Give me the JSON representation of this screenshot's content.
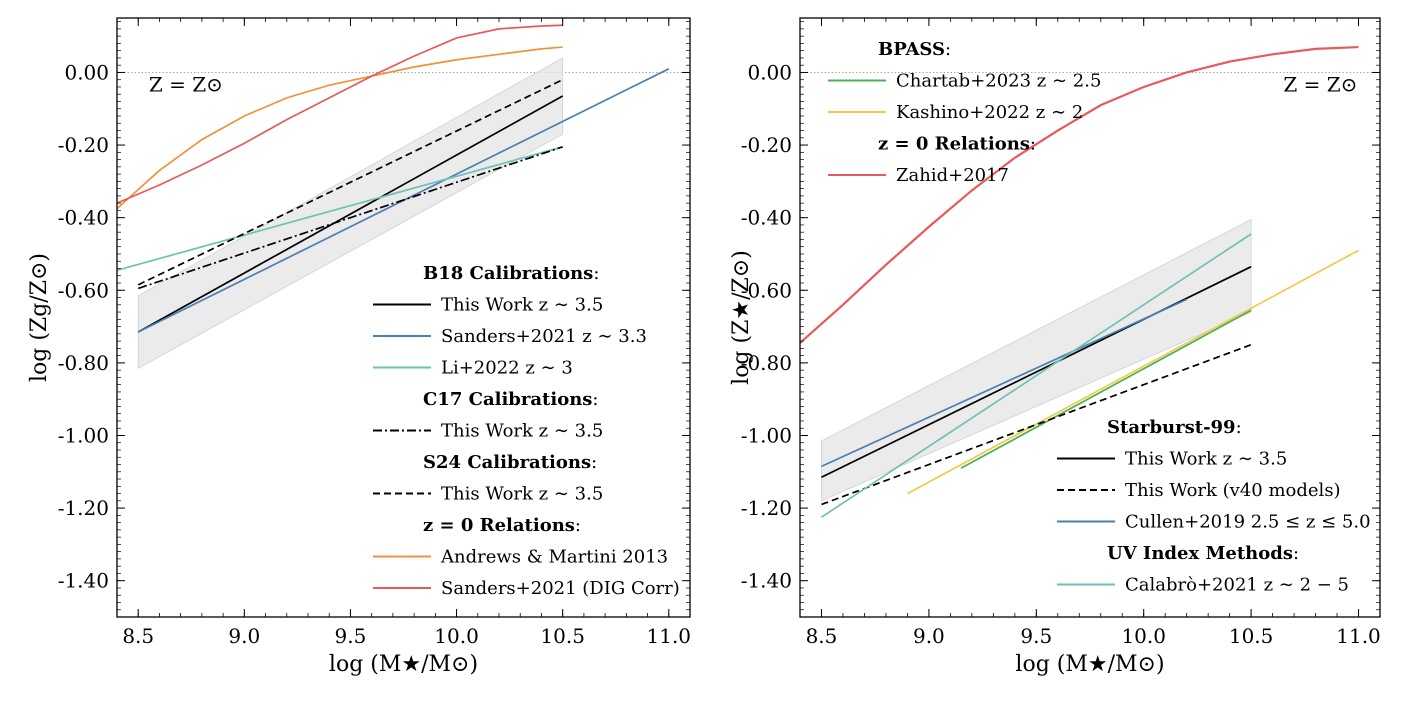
{
  "chart_data": [
    {
      "type": "line",
      "xlabel": "log (M★/M⊙)",
      "ylabel": "log (Zg/Z⊙)",
      "xlim": [
        8.4,
        11.1
      ],
      "ylim": [
        -1.5,
        0.15
      ],
      "x_ticks": [
        8.5,
        9.0,
        9.5,
        10.0,
        10.5,
        11.0
      ],
      "x_tick_labels": [
        "8.5",
        "9.0",
        "9.5",
        "10.0",
        "10.5",
        "11.0"
      ],
      "y_ticks": [
        0.0,
        -0.2,
        -0.4,
        -0.6,
        -0.8,
        -1.0,
        -1.2,
        -1.4
      ],
      "y_tick_labels": [
        "0.00",
        "-0.20",
        "-0.40",
        "-0.60",
        "-0.80",
        "-1.00",
        "-1.20",
        "-1.40"
      ],
      "reference_line": {
        "y": 0.0,
        "label": "Z = Z⊙",
        "label_x": 8.55,
        "label_y": -0.03
      },
      "band": {
        "x": [
          8.5,
          10.5
        ],
        "lower": [
          -0.815,
          -0.17
        ],
        "upper": [
          -0.615,
          0.04
        ]
      },
      "series": [
        {
          "name": "This Work z ∼ 3.5",
          "group": "B18 Calibrations",
          "color": "#000000",
          "dash": "solid",
          "x": [
            8.5,
            10.5
          ],
          "y": [
            -0.715,
            -0.065
          ]
        },
        {
          "name": "Sanders+2021 z ∼ 3.3",
          "group": "B18 Calibrations",
          "color": "#4a7fb0",
          "dash": "solid",
          "x": [
            8.5,
            11.0
          ],
          "y": [
            -0.715,
            0.01
          ]
        },
        {
          "name": "Li+2022 z ∼ 3",
          "group": "B18 Calibrations",
          "color": "#6cc2b4",
          "dash": "solid",
          "x": [
            8.4,
            10.5
          ],
          "y": [
            -0.545,
            -0.205
          ]
        },
        {
          "name": "This Work z ∼ 3.5",
          "group": "C17 Calibrations",
          "color": "#000000",
          "dash": "dashdot",
          "x": [
            8.5,
            10.5
          ],
          "y": [
            -0.595,
            -0.205
          ]
        },
        {
          "name": "This Work z ∼ 3.5",
          "group": "S24 Calibrations",
          "color": "#000000",
          "dash": "dashed",
          "x": [
            8.5,
            10.5
          ],
          "y": [
            -0.585,
            -0.02
          ]
        },
        {
          "name": "Andrews & Martini 2013",
          "group": "z = 0 Relations",
          "color": "#f0923a",
          "dash": "solid",
          "x": [
            8.4,
            8.6,
            8.8,
            9.0,
            9.2,
            9.4,
            9.6,
            9.8,
            10.0,
            10.2,
            10.4,
            10.5
          ],
          "y": [
            -0.375,
            -0.27,
            -0.185,
            -0.12,
            -0.07,
            -0.035,
            -0.01,
            0.015,
            0.035,
            0.05,
            0.065,
            0.07
          ]
        },
        {
          "name": "Sanders+2021 (DIG Corr)",
          "group": "z = 0 Relations",
          "color": "#e85a5a",
          "dash": "solid",
          "x": [
            8.4,
            8.6,
            8.8,
            9.0,
            9.2,
            9.4,
            9.6,
            9.8,
            10.0,
            10.2,
            10.4,
            10.5
          ],
          "y": [
            -0.36,
            -0.31,
            -0.255,
            -0.195,
            -0.13,
            -0.07,
            -0.01,
            0.045,
            0.095,
            0.12,
            0.128,
            0.13
          ]
        }
      ],
      "legend": {
        "placement": "lower-right",
        "entries": [
          {
            "kind": "header",
            "text": "B18 Calibrations",
            "suffix": ":"
          },
          {
            "kind": "line",
            "series": 0
          },
          {
            "kind": "line",
            "series": 1
          },
          {
            "kind": "line",
            "series": 2
          },
          {
            "kind": "header",
            "text": "C17 Calibrations",
            "suffix": ":"
          },
          {
            "kind": "line",
            "series": 3
          },
          {
            "kind": "header",
            "text": "S24 Calibrations",
            "suffix": ":"
          },
          {
            "kind": "line",
            "series": 4
          },
          {
            "kind": "header",
            "text": "z = 0 Relations",
            "suffix": ":"
          },
          {
            "kind": "line",
            "series": 5
          },
          {
            "kind": "line",
            "series": 6
          }
        ]
      }
    },
    {
      "type": "line",
      "xlabel": "log (M★/M⊙)",
      "ylabel": "log (Z★/Z⊙)",
      "xlim": [
        8.4,
        11.1
      ],
      "ylim": [
        -1.5,
        0.15
      ],
      "x_ticks": [
        8.5,
        9.0,
        9.5,
        10.0,
        10.5,
        11.0
      ],
      "x_tick_labels": [
        "8.5",
        "9.0",
        "9.5",
        "10.0",
        "10.5",
        "11.0"
      ],
      "y_ticks": [
        0.0,
        -0.2,
        -0.4,
        -0.6,
        -0.8,
        -1.0,
        -1.2,
        -1.4
      ],
      "y_tick_labels": [
        "0.00",
        "-0.20",
        "-0.40",
        "-0.60",
        "-0.80",
        "-1.00",
        "-1.20",
        "-1.40"
      ],
      "reference_line": {
        "y": 0.0,
        "label": "Z = Z⊙",
        "label_x": 10.65,
        "label_y": -0.03
      },
      "band": {
        "x": [
          8.5,
          10.5
        ],
        "lower": [
          -1.18,
          -0.66
        ],
        "upper": [
          -1.015,
          -0.405
        ]
      },
      "series": [
        {
          "name": "Chartab+2023 z ∼ 2.5",
          "group": "BPASS",
          "color": "#4caf50",
          "dash": "solid",
          "x": [
            9.15,
            10.5
          ],
          "y": [
            -1.09,
            -0.655
          ]
        },
        {
          "name": "Kashino+2022 z ∼ 2",
          "group": "BPASS",
          "color": "#f2c94c",
          "dash": "solid",
          "x": [
            8.9,
            11.0
          ],
          "y": [
            -1.16,
            -0.49
          ]
        },
        {
          "name": "Zahid+2017",
          "group": "z = 0 Relations",
          "color": "#e85a5a",
          "dash": "solid",
          "x": [
            8.4,
            8.6,
            8.8,
            9.0,
            9.2,
            9.4,
            9.6,
            9.8,
            10.0,
            10.2,
            10.4,
            10.6,
            10.8,
            11.0
          ],
          "y": [
            -0.745,
            -0.64,
            -0.53,
            -0.425,
            -0.325,
            -0.235,
            -0.16,
            -0.09,
            -0.04,
            0.0,
            0.03,
            0.05,
            0.065,
            0.07
          ]
        },
        {
          "name": "This Work z ∼ 3.5",
          "group": "Starburst-99",
          "color": "#000000",
          "dash": "solid",
          "x": [
            8.5,
            10.5
          ],
          "y": [
            -1.115,
            -0.535
          ]
        },
        {
          "name": "This Work (v40 models)",
          "group": "Starburst-99",
          "color": "#000000",
          "dash": "dashed",
          "x": [
            8.5,
            10.5
          ],
          "y": [
            -1.19,
            -0.75
          ]
        },
        {
          "name": "Cullen+2019 2.5 ≤ z ≤ 5.0",
          "group": "Starburst-99",
          "color": "#4a7fb0",
          "dash": "solid",
          "x": [
            8.5,
            10.2
          ],
          "y": [
            -1.085,
            -0.625
          ]
        },
        {
          "name": "Calabrò+2021 z ∼ 2 − 5",
          "group": "UV Index Methods",
          "color": "#6cc2b4",
          "dash": "solid",
          "x": [
            8.5,
            10.5
          ],
          "y": [
            -1.225,
            -0.445
          ]
        }
      ],
      "legends": [
        {
          "placement": "upper-left",
          "entries": [
            {
              "kind": "header",
              "text": "BPASS",
              "suffix": ":"
            },
            {
              "kind": "line",
              "series": 0
            },
            {
              "kind": "line",
              "series": 1
            },
            {
              "kind": "header",
              "text": "z = 0 Relations",
              "suffix": ":"
            },
            {
              "kind": "line",
              "series": 2
            }
          ]
        },
        {
          "placement": "lower-right",
          "entries": [
            {
              "kind": "header",
              "text": "Starburst-99",
              "suffix": ":"
            },
            {
              "kind": "line",
              "series": 3
            },
            {
              "kind": "line",
              "series": 4
            },
            {
              "kind": "line",
              "series": 5
            },
            {
              "kind": "header",
              "text": "UV Index Methods",
              "suffix": ":"
            },
            {
              "kind": "line",
              "series": 6
            }
          ]
        }
      ]
    }
  ]
}
